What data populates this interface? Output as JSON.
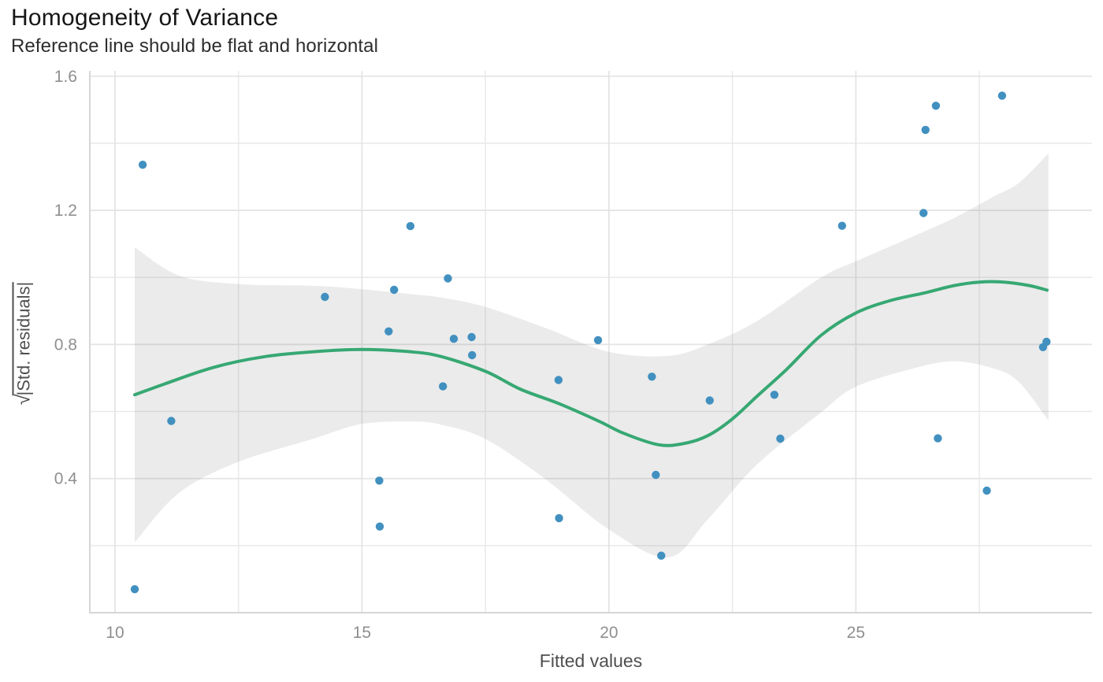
{
  "header": {
    "title": "Homogeneity of Variance",
    "subtitle": "Reference line should be flat and horizontal"
  },
  "chart_data": {
    "type": "scatter",
    "title": "Homogeneity of Variance",
    "subtitle": "Reference line should be flat and horizontal",
    "xlabel": "Fitted values",
    "ylabel": "√|Std. residuals|",
    "ylabel_sqrt": "√",
    "ylabel_inner": "|Std. residuals|",
    "legend": "none",
    "grid": true,
    "xlim": [
      9.49,
      29.78
    ],
    "ylim": [
      0,
      1.616
    ],
    "x_ticks": [
      10,
      15,
      20,
      25
    ],
    "x_tick_labels": [
      "10",
      "15",
      "20",
      "25"
    ],
    "x_minor_ticks": [
      12.5,
      17.5,
      22.5,
      27.5
    ],
    "y_ticks": [
      0.4,
      0.8,
      1.2,
      1.6
    ],
    "y_tick_labels": [
      "0.4",
      "0.8",
      "1.2",
      "1.6"
    ],
    "y_minor_ticks": [
      0.2,
      0.6,
      1.0,
      1.4
    ],
    "points": [
      [
        10.4,
        0.07
      ],
      [
        10.56,
        1.336
      ],
      [
        11.14,
        0.572
      ],
      [
        14.25,
        0.942
      ],
      [
        15.35,
        0.394
      ],
      [
        15.36,
        0.257
      ],
      [
        15.54,
        0.839
      ],
      [
        15.65,
        0.963
      ],
      [
        15.98,
        1.153
      ],
      [
        16.64,
        0.675
      ],
      [
        16.74,
        0.997
      ],
      [
        16.86,
        0.817
      ],
      [
        17.22,
        0.822
      ],
      [
        17.23,
        0.768
      ],
      [
        18.98,
        0.694
      ],
      [
        18.99,
        0.282
      ],
      [
        19.78,
        0.813
      ],
      [
        20.87,
        0.704
      ],
      [
        20.95,
        0.411
      ],
      [
        21.06,
        0.17
      ],
      [
        22.04,
        0.633
      ],
      [
        23.35,
        0.65
      ],
      [
        23.47,
        0.519
      ],
      [
        24.72,
        1.154
      ],
      [
        26.37,
        1.192
      ],
      [
        26.41,
        1.44
      ],
      [
        26.62,
        1.512
      ],
      [
        26.66,
        0.52
      ],
      [
        27.65,
        0.364
      ],
      [
        27.96,
        1.542
      ],
      [
        28.79,
        0.792
      ],
      [
        28.86,
        0.808
      ]
    ],
    "smooth_line": {
      "x": [
        10.4,
        11.0,
        12.0,
        13.0,
        14.0,
        15.0,
        16.0,
        16.6,
        17.5,
        18.2,
        19.0,
        19.8,
        20.3,
        21.0,
        21.5,
        22.0,
        22.5,
        23.0,
        23.6,
        24.3,
        25.0,
        25.7,
        26.4,
        27.0,
        27.5,
        28.0,
        28.5,
        28.87
      ],
      "y": [
        0.65,
        0.682,
        0.732,
        0.763,
        0.778,
        0.785,
        0.778,
        0.764,
        0.72,
        0.667,
        0.623,
        0.571,
        0.535,
        0.501,
        0.504,
        0.528,
        0.578,
        0.646,
        0.726,
        0.828,
        0.894,
        0.931,
        0.954,
        0.976,
        0.986,
        0.986,
        0.976,
        0.962
      ]
    },
    "confidence_band": {
      "x": [
        10.4,
        11.3,
        12.5,
        14.0,
        15.0,
        16.0,
        16.6,
        17.5,
        18.7,
        20.0,
        21.2,
        22.0,
        23.0,
        24.3,
        25.0,
        26.2,
        27.0,
        27.8,
        28.3,
        28.9
      ],
      "upper": [
        1.09,
        1.005,
        0.98,
        0.975,
        0.965,
        0.95,
        0.94,
        0.912,
        0.85,
        0.778,
        0.766,
        0.8,
        0.87,
        1.0,
        1.048,
        1.125,
        1.178,
        1.242,
        1.282,
        1.37
      ],
      "lower": [
        0.21,
        0.358,
        0.45,
        0.518,
        0.563,
        0.57,
        0.561,
        0.518,
        0.4,
        0.248,
        0.165,
        0.278,
        0.442,
        0.598,
        0.674,
        0.73,
        0.75,
        0.728,
        0.688,
        0.573
      ]
    },
    "colors": {
      "point": "#4190c0",
      "line": "#37a873",
      "band": "rgba(128,128,128,0.16)",
      "grid_major": "#e3e3e3",
      "grid_minor": "#e9e9e9",
      "axis_line": "#d6d6d6",
      "tick_text": "#8f8f8f",
      "axis_title": "#4f4f4f",
      "title": "#161616",
      "subtitle": "#2d2d2d"
    }
  }
}
